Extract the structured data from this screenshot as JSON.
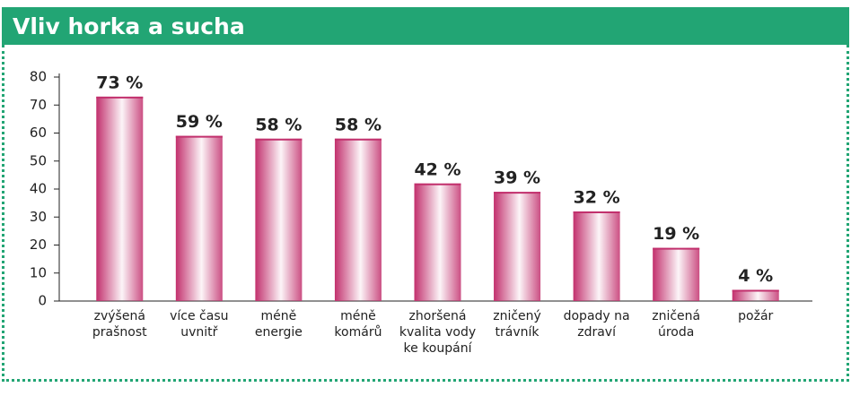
{
  "chart_data": {
    "type": "bar",
    "title": "Vliv horka a sucha",
    "categories": [
      "zvýšená prašnost",
      "více času uvnitř",
      "méně energie",
      "méně komárů",
      "zhoršená kvalita vody ke koupání",
      "zničený trávník",
      "dopady na zdraví",
      "zničená úroda",
      "požár"
    ],
    "values": [
      73,
      59,
      58,
      58,
      42,
      39,
      32,
      19,
      4
    ],
    "value_labels": [
      "73 %",
      "59 %",
      "58 %",
      "58 %",
      "42 %",
      "39 %",
      "32 %",
      "19 %",
      "4 %"
    ],
    "color": "#c2306d",
    "ylim": [
      0,
      80
    ],
    "yticks": [
      0,
      10,
      20,
      30,
      40,
      50,
      60,
      70,
      80
    ]
  }
}
